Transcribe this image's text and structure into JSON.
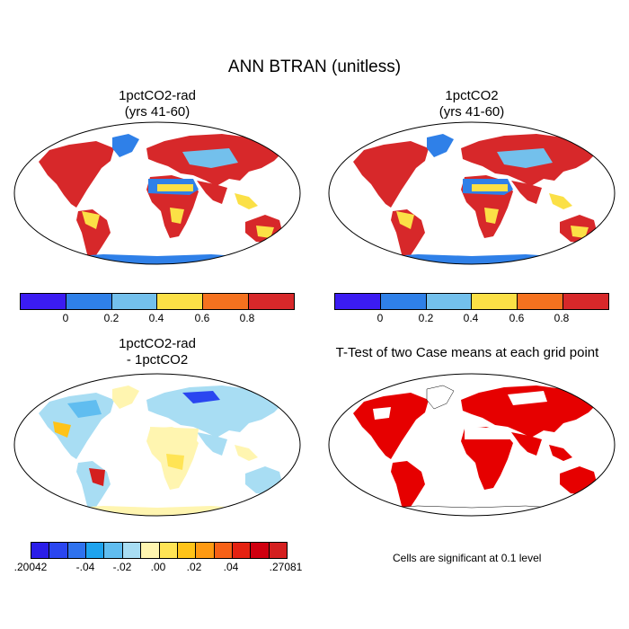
{
  "title": "ANN BTRAN (unitless)",
  "panels": [
    {
      "title_line1": "1pctCO2-rad",
      "title_line2": "(yrs 41-60)"
    },
    {
      "title_line1": "1pctCO2",
      "title_line2": "(yrs 41-60)"
    },
    {
      "title_line1": "1pctCO2-rad",
      "title_line2": "- 1pctCO2"
    },
    {
      "title_line1": "T-Test of two Case means at each grid point",
      "title_line2": ""
    }
  ],
  "colorbar_top": {
    "colors": [
      "#3b1cf2",
      "#2f80e8",
      "#73c0ec",
      "#fbe046",
      "#f5721f",
      "#d7282a"
    ],
    "labels": [
      "0",
      "0.2",
      "0.4",
      "0.6",
      "0.8"
    ]
  },
  "colorbar_diff": {
    "colors": [
      "#2b1ee8",
      "#2a46f0",
      "#2f72ee",
      "#1ea3ee",
      "#60bdf0",
      "#a8ddf3",
      "#fff5b0",
      "#ffe455",
      "#ffc318",
      "#ff9a12",
      "#f76117",
      "#e52211",
      "#d00010",
      "#d41f1f"
    ],
    "labels": [
      ".20042",
      "-.04",
      "-.02",
      ".00",
      ".02",
      ".04",
      ".27081"
    ]
  },
  "ttest_note": "Cells are significant at 0.1 level",
  "palette": {
    "ocean": "#ffffff",
    "outline": "#000000",
    "sig": "#e60000"
  }
}
